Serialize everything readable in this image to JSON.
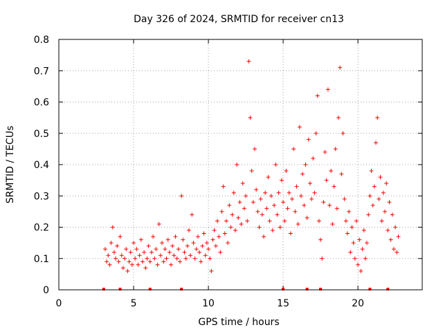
{
  "chart_data": {
    "type": "scatter",
    "title": "Day 326 of 2024, SRMTID for receiver cn13",
    "xlabel": "GPS time / hours",
    "ylabel": "SRMTID / TECUs",
    "xlim": [
      0,
      24.3
    ],
    "ylim": [
      0,
      0.8
    ],
    "x_ticks": [
      0,
      5,
      10,
      15,
      20
    ],
    "y_ticks": [
      0,
      0.1,
      0.2,
      0.3,
      0.4,
      0.5,
      0.6,
      0.7,
      0.8
    ],
    "grid": true,
    "marker": "+",
    "color": "#ff0000",
    "series": [
      {
        "name": "cn13",
        "points": [
          [
            3.1,
            0.13
          ],
          [
            3.2,
            0.09
          ],
          [
            3.3,
            0.11
          ],
          [
            3.4,
            0.08
          ],
          [
            3.5,
            0.15
          ],
          [
            3.6,
            0.2
          ],
          [
            3.7,
            0.12
          ],
          [
            3.8,
            0.1
          ],
          [
            3.9,
            0.14
          ],
          [
            4.0,
            0.09
          ],
          [
            4.1,
            0.17
          ],
          [
            4.2,
            0.11
          ],
          [
            4.3,
            0.07
          ],
          [
            4.4,
            0.1
          ],
          [
            4.5,
            0.13
          ],
          [
            4.6,
            0.06
          ],
          [
            4.7,
            0.09
          ],
          [
            4.8,
            0.12
          ],
          [
            4.9,
            0.08
          ],
          [
            5.0,
            0.15
          ],
          [
            5.1,
            0.1
          ],
          [
            5.2,
            0.13
          ],
          [
            5.3,
            0.08
          ],
          [
            5.4,
            0.11
          ],
          [
            5.5,
            0.16
          ],
          [
            5.6,
            0.09
          ],
          [
            5.7,
            0.12
          ],
          [
            5.8,
            0.07
          ],
          [
            5.9,
            0.1
          ],
          [
            6.0,
            0.14
          ],
          [
            6.1,
            0.09
          ],
          [
            6.2,
            0.12
          ],
          [
            6.3,
            0.17
          ],
          [
            6.4,
            0.1
          ],
          [
            6.5,
            0.13
          ],
          [
            6.6,
            0.08
          ],
          [
            6.7,
            0.21
          ],
          [
            6.8,
            0.11
          ],
          [
            6.9,
            0.15
          ],
          [
            7.0,
            0.09
          ],
          [
            7.1,
            0.13
          ],
          [
            7.2,
            0.1
          ],
          [
            7.3,
            0.16
          ],
          [
            7.4,
            0.12
          ],
          [
            7.5,
            0.08
          ],
          [
            7.6,
            0.14
          ],
          [
            7.7,
            0.11
          ],
          [
            7.8,
            0.17
          ],
          [
            7.9,
            0.1
          ],
          [
            8.0,
            0.13
          ],
          [
            8.1,
            0.09
          ],
          [
            8.2,
            0.3
          ],
          [
            8.3,
            0.16
          ],
          [
            8.4,
            0.12
          ],
          [
            8.5,
            0.1
          ],
          [
            8.6,
            0.14
          ],
          [
            8.7,
            0.19
          ],
          [
            8.8,
            0.11
          ],
          [
            8.9,
            0.24
          ],
          [
            9.0,
            0.15
          ],
          [
            9.1,
            0.1
          ],
          [
            9.2,
            0.13
          ],
          [
            9.3,
            0.17
          ],
          [
            9.4,
            0.12
          ],
          [
            9.5,
            0.09
          ],
          [
            9.6,
            0.14
          ],
          [
            9.7,
            0.18
          ],
          [
            9.8,
            0.11
          ],
          [
            9.9,
            0.15
          ],
          [
            10.0,
            0.13
          ],
          [
            10.1,
            0.1
          ],
          [
            10.2,
            0.06
          ],
          [
            10.3,
            0.16
          ],
          [
            10.4,
            0.19
          ],
          [
            10.5,
            0.14
          ],
          [
            10.6,
            0.22
          ],
          [
            10.7,
            0.17
          ],
          [
            10.8,
            0.12
          ],
          [
            10.9,
            0.25
          ],
          [
            11.0,
            0.33
          ],
          [
            11.1,
            0.18
          ],
          [
            11.2,
            0.22
          ],
          [
            11.3,
            0.15
          ],
          [
            11.4,
            0.27
          ],
          [
            11.5,
            0.2
          ],
          [
            11.6,
            0.24
          ],
          [
            11.7,
            0.31
          ],
          [
            11.8,
            0.19
          ],
          [
            11.9,
            0.4
          ],
          [
            12.0,
            0.23
          ],
          [
            12.1,
            0.28
          ],
          [
            12.2,
            0.21
          ],
          [
            12.3,
            0.34
          ],
          [
            12.4,
            0.26
          ],
          [
            12.5,
            0.3
          ],
          [
            12.6,
            0.22
          ],
          [
            12.7,
            0.73
          ],
          [
            12.8,
            0.55
          ],
          [
            12.9,
            0.38
          ],
          [
            13.0,
            0.28
          ],
          [
            13.1,
            0.45
          ],
          [
            13.2,
            0.32
          ],
          [
            13.3,
            0.25
          ],
          [
            13.4,
            0.2
          ],
          [
            13.5,
            0.29
          ],
          [
            13.6,
            0.24
          ],
          [
            13.7,
            0.17
          ],
          [
            13.8,
            0.31
          ],
          [
            13.9,
            0.26
          ],
          [
            14.0,
            0.36
          ],
          [
            14.1,
            0.22
          ],
          [
            14.2,
            0.3
          ],
          [
            14.3,
            0.19
          ],
          [
            14.4,
            0.27
          ],
          [
            14.5,
            0.4
          ],
          [
            14.6,
            0.24
          ],
          [
            14.7,
            0.31
          ],
          [
            14.8,
            0.2
          ],
          [
            14.9,
            0.35
          ],
          [
            15.0,
            0.28
          ],
          [
            15.1,
            0.22
          ],
          [
            15.2,
            0.38
          ],
          [
            15.3,
            0.26
          ],
          [
            15.4,
            0.31
          ],
          [
            15.5,
            0.18
          ],
          [
            15.6,
            0.29
          ],
          [
            15.7,
            0.45
          ],
          [
            15.8,
            0.25
          ],
          [
            15.9,
            0.33
          ],
          [
            16.0,
            0.21
          ],
          [
            16.1,
            0.52
          ],
          [
            16.2,
            0.3
          ],
          [
            16.3,
            0.37
          ],
          [
            16.4,
            0.27
          ],
          [
            16.5,
            0.4
          ],
          [
            16.6,
            0.23
          ],
          [
            16.7,
            0.48
          ],
          [
            16.8,
            0.34
          ],
          [
            16.9,
            0.29
          ],
          [
            17.0,
            0.42
          ],
          [
            17.1,
            0.31
          ],
          [
            17.2,
            0.5
          ],
          [
            17.3,
            0.62
          ],
          [
            17.4,
            0.22
          ],
          [
            17.5,
            0.16
          ],
          [
            17.6,
            0.1
          ],
          [
            17.7,
            0.28
          ],
          [
            17.8,
            0.44
          ],
          [
            17.9,
            0.35
          ],
          [
            18.0,
            0.64
          ],
          [
            18.1,
            0.27
          ],
          [
            18.2,
            0.38
          ],
          [
            18.3,
            0.21
          ],
          [
            18.4,
            0.33
          ],
          [
            18.5,
            0.45
          ],
          [
            18.6,
            0.26
          ],
          [
            18.7,
            0.55
          ],
          [
            18.8,
            0.71
          ],
          [
            18.9,
            0.37
          ],
          [
            19.0,
            0.5
          ],
          [
            19.1,
            0.29
          ],
          [
            19.2,
            0.22
          ],
          [
            19.3,
            0.18
          ],
          [
            19.4,
            0.25
          ],
          [
            19.5,
            0.12
          ],
          [
            19.6,
            0.2
          ],
          [
            19.7,
            0.15
          ],
          [
            19.8,
            0.1
          ],
          [
            19.9,
            0.22
          ],
          [
            20.0,
            0.08
          ],
          [
            20.1,
            0.16
          ],
          [
            20.2,
            0.06
          ],
          [
            20.3,
            0.13
          ],
          [
            20.4,
            0.19
          ],
          [
            20.5,
            0.1
          ],
          [
            20.6,
            0.15
          ],
          [
            20.7,
            0.24
          ],
          [
            20.8,
            0.3
          ],
          [
            20.9,
            0.38
          ],
          [
            21.0,
            0.27
          ],
          [
            21.1,
            0.33
          ],
          [
            21.2,
            0.47
          ],
          [
            21.3,
            0.55
          ],
          [
            21.4,
            0.29
          ],
          [
            21.5,
            0.36
          ],
          [
            21.6,
            0.22
          ],
          [
            21.7,
            0.31
          ],
          [
            21.8,
            0.25
          ],
          [
            21.9,
            0.34
          ],
          [
            22.0,
            0.19
          ],
          [
            22.1,
            0.28
          ],
          [
            22.2,
            0.16
          ],
          [
            22.3,
            0.24
          ],
          [
            22.4,
            0.13
          ],
          [
            22.5,
            0.2
          ],
          [
            22.6,
            0.12
          ],
          [
            22.7,
            0.17
          ]
        ]
      }
    ],
    "gap_markers_x": [
      3.0,
      4.1,
      6.1,
      8.2,
      15.0,
      16.6,
      17.5,
      20.8,
      22.0
    ]
  }
}
